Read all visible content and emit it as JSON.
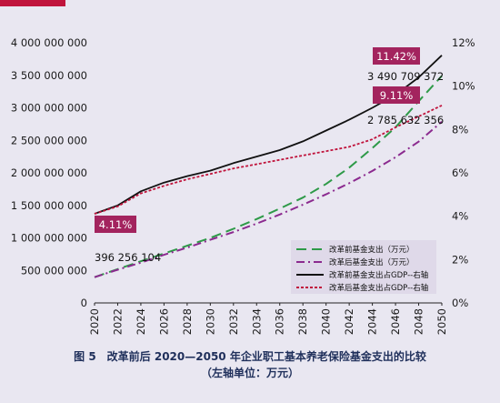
{
  "chart_data": {
    "type": "line",
    "x": [
      2020,
      2022,
      2024,
      2026,
      2028,
      2030,
      2032,
      2034,
      2036,
      2038,
      2040,
      2042,
      2044,
      2046,
      2048,
      2050
    ],
    "y_left_ticks": [
      "4 000 000 000",
      "3 500 000 000",
      "3 000 000 000",
      "2 500 000 000",
      "2 000 000 000",
      "1 500 000 000",
      "1 000 000 000",
      "500 000 000",
      "0"
    ],
    "y_right_ticks": [
      "12%",
      "10%",
      "8%",
      "6%",
      "4%",
      "2%",
      "0%"
    ],
    "ylim_left": [
      0,
      4000000000
    ],
    "ylim_right": [
      0,
      12
    ],
    "series": [
      {
        "name": "改革前基金支出（万元）",
        "axis": "left",
        "color": "#2e9a48",
        "dash": "11,6",
        "values": [
          396256104,
          520000000,
          640000000,
          760000000,
          880000000,
          1000000000,
          1140000000,
          1290000000,
          1450000000,
          1620000000,
          1830000000,
          2080000000,
          2380000000,
          2700000000,
          3100000000,
          3490709372
        ]
      },
      {
        "name": "改革后基金支出（万元）",
        "axis": "left",
        "color": "#8b2a8f",
        "dash": "9,4,2,4",
        "values": [
          396256104,
          510000000,
          620000000,
          740000000,
          850000000,
          970000000,
          1090000000,
          1220000000,
          1360000000,
          1510000000,
          1670000000,
          1840000000,
          2030000000,
          2240000000,
          2480000000,
          2785632356
        ]
      },
      {
        "name": "改革前基金支出占GDP--右轴",
        "axis": "right",
        "color": "#111111",
        "dash": "",
        "values": [
          4.11,
          4.5,
          5.15,
          5.55,
          5.85,
          6.1,
          6.45,
          6.75,
          7.05,
          7.45,
          7.95,
          8.45,
          9.0,
          9.6,
          10.4,
          11.42
        ]
      },
      {
        "name": "改革后基金支出占GDP--右轴",
        "axis": "right",
        "color": "#c0143c",
        "dash": "3,2",
        "values": [
          4.11,
          4.45,
          5.05,
          5.4,
          5.7,
          5.95,
          6.2,
          6.4,
          6.6,
          6.8,
          7.0,
          7.2,
          7.55,
          8.1,
          8.6,
          9.11
        ]
      }
    ],
    "annotations": {
      "left_start_value": "396 256 104",
      "left_end_before": "3 490 709 372",
      "left_end_after": "2 785 632 356",
      "pct_start": "4.11%",
      "pct_end_before": "11.42%",
      "pct_end_after": "9.11%"
    },
    "legend_placement": "bottom-right",
    "grid": false
  },
  "colors": {
    "background": "#e9e7f1",
    "badge": "#a3245e",
    "legend_bg": "#ddd6e8",
    "accent_red": "#c0143c",
    "caption": "#1f2f5b"
  },
  "caption": {
    "line1": "图 5　改革前后 2020—2050 年企业职工基本养老保险基金支出的比较",
    "line2": "（左轴单位：万元）"
  }
}
